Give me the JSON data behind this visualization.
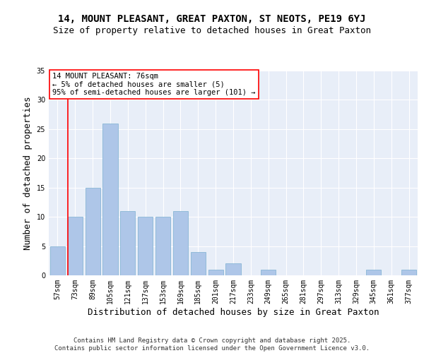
{
  "title1": "14, MOUNT PLEASANT, GREAT PAXTON, ST NEOTS, PE19 6YJ",
  "title2": "Size of property relative to detached houses in Great Paxton",
  "xlabel": "Distribution of detached houses by size in Great Paxton",
  "ylabel": "Number of detached properties",
  "categories": [
    "57sqm",
    "73sqm",
    "89sqm",
    "105sqm",
    "121sqm",
    "137sqm",
    "153sqm",
    "169sqm",
    "185sqm",
    "201sqm",
    "217sqm",
    "233sqm",
    "249sqm",
    "265sqm",
    "281sqm",
    "297sqm",
    "313sqm",
    "329sqm",
    "345sqm",
    "361sqm",
    "377sqm"
  ],
  "values": [
    5,
    10,
    15,
    26,
    11,
    10,
    10,
    11,
    4,
    1,
    2,
    0,
    1,
    0,
    0,
    0,
    0,
    0,
    1,
    0,
    1
  ],
  "bar_color": "#aec6e8",
  "bar_edge_color": "#7aaed0",
  "vline_color": "red",
  "vline_x_index": 1,
  "annotation_text": "14 MOUNT PLEASANT: 76sqm\n← 5% of detached houses are smaller (5)\n95% of semi-detached houses are larger (101) →",
  "annotation_box_color": "white",
  "annotation_box_edge": "red",
  "ylim": [
    0,
    35
  ],
  "yticks": [
    0,
    5,
    10,
    15,
    20,
    25,
    30,
    35
  ],
  "background_color": "#e8eef8",
  "footer_text": "Contains HM Land Registry data © Crown copyright and database right 2025.\nContains public sector information licensed under the Open Government Licence v3.0.",
  "title1_fontsize": 10,
  "title2_fontsize": 9,
  "xlabel_fontsize": 9,
  "ylabel_fontsize": 9,
  "tick_fontsize": 7,
  "annotation_fontsize": 7.5,
  "footer_fontsize": 6.5
}
